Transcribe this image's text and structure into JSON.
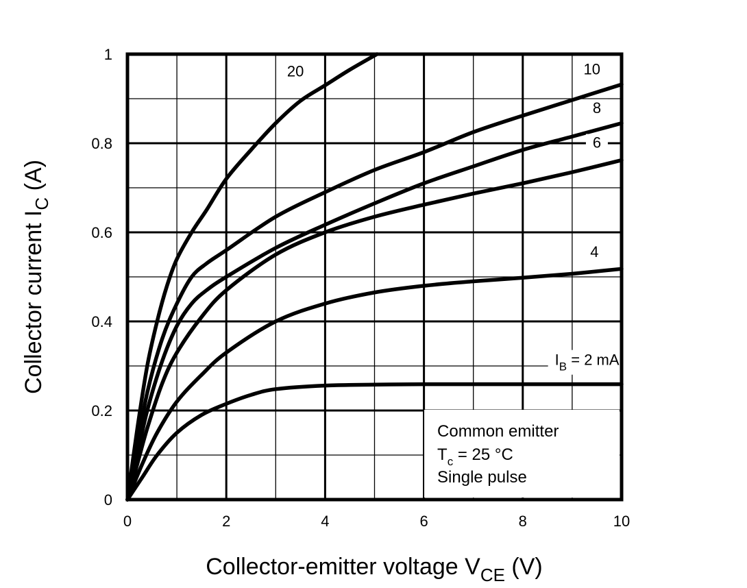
{
  "chart_data": {
    "type": "line",
    "xlabel": {
      "main": "Collector-emitter  voltage  V",
      "sub": "CE",
      "unit": "  (V)"
    },
    "ylabel": {
      "main": "Collector  current  I",
      "sub": "C",
      "unit": "  (A)"
    },
    "xlim": [
      0,
      10
    ],
    "ylim": [
      0,
      1
    ],
    "x_ticks": [
      "0",
      "2",
      "4",
      "6",
      "8",
      "10"
    ],
    "y_ticks": [
      "0",
      "0.2",
      "0.4",
      "0.6",
      "0.8",
      "1"
    ],
    "grid": true,
    "series": [
      {
        "name": "IB = 2 mA",
        "x": [
          0,
          0.3,
          0.6,
          1.0,
          1.5,
          2.0,
          2.5,
          3.0,
          4.0,
          5.0,
          6.0,
          8.0,
          10.0
        ],
        "y": [
          0,
          0.05,
          0.1,
          0.15,
          0.19,
          0.215,
          0.235,
          0.248,
          0.256,
          0.258,
          0.259,
          0.259,
          0.259
        ]
      },
      {
        "name": "4",
        "x": [
          0,
          0.3,
          0.6,
          1.0,
          1.5,
          2.0,
          3.0,
          4.0,
          5.0,
          6.0,
          7.0,
          8.0,
          9.0,
          10.0
        ],
        "y": [
          0,
          0.08,
          0.15,
          0.22,
          0.28,
          0.33,
          0.4,
          0.44,
          0.465,
          0.48,
          0.49,
          0.498,
          0.507,
          0.518
        ]
      },
      {
        "name": "6",
        "x": [
          0,
          0.2,
          0.4,
          0.7,
          1.0,
          1.5,
          2.0,
          3.0,
          4.0,
          5.0,
          6.0,
          7.0,
          8.0,
          9.0,
          10.0
        ],
        "y": [
          0,
          0.08,
          0.16,
          0.26,
          0.33,
          0.41,
          0.47,
          0.55,
          0.6,
          0.635,
          0.662,
          0.687,
          0.71,
          0.735,
          0.762
        ]
      },
      {
        "name": "8",
        "x": [
          0,
          0.2,
          0.4,
          0.7,
          1.0,
          1.3,
          1.6,
          2.0,
          3.0,
          4.0,
          5.0,
          6.0,
          7.0,
          8.0,
          9.0,
          10.0
        ],
        "y": [
          0,
          0.1,
          0.2,
          0.31,
          0.39,
          0.44,
          0.47,
          0.5,
          0.565,
          0.617,
          0.665,
          0.71,
          0.748,
          0.785,
          0.815,
          0.845
        ]
      },
      {
        "name": "10",
        "x": [
          0,
          0.2,
          0.4,
          0.7,
          1.0,
          1.3,
          1.6,
          2.0,
          3.0,
          4.0,
          5.0,
          6.0,
          7.0,
          8.0,
          9.0,
          10.0
        ],
        "y": [
          0,
          0.12,
          0.24,
          0.36,
          0.44,
          0.5,
          0.53,
          0.56,
          0.635,
          0.69,
          0.74,
          0.78,
          0.825,
          0.862,
          0.897,
          0.932
        ]
      },
      {
        "name": "20",
        "x": [
          0,
          0.2,
          0.4,
          0.6,
          0.8,
          1.0,
          1.3,
          1.6,
          2.0,
          2.5,
          3.0,
          3.5,
          4.0,
          4.5,
          5.05
        ],
        "y": [
          0,
          0.16,
          0.3,
          0.4,
          0.48,
          0.54,
          0.6,
          0.65,
          0.72,
          0.785,
          0.845,
          0.895,
          0.93,
          0.965,
          1.0
        ]
      }
    ],
    "curve_labels": [
      {
        "text": "20",
        "x": 3.4,
        "y": 0.95
      },
      {
        "text": "10",
        "x": 9.4,
        "y": 0.955
      },
      {
        "text": "8",
        "x": 9.5,
        "y": 0.868
      },
      {
        "text": "6",
        "x": 9.5,
        "y": 0.79
      },
      {
        "text": "4",
        "x": 9.45,
        "y": 0.545
      }
    ],
    "ib_label": {
      "main": "I",
      "sub": "B",
      "rest": " = 2 mA",
      "x": 8.65,
      "y": 0.302
    },
    "conditions": {
      "line1": "Common emitter",
      "line2_main": "T",
      "line2_sub": "c",
      "line2_rest": " = 25 °C",
      "line3": "Single pulse"
    }
  }
}
